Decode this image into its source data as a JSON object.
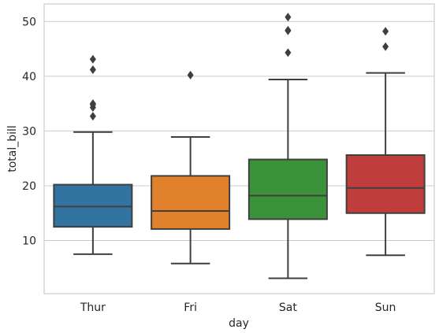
{
  "chart_data": {
    "type": "boxplot",
    "xlabel": "day",
    "ylabel": "total_bill",
    "ylim": [
      0.3,
      53.2
    ],
    "yticks": [
      10,
      20,
      30,
      40,
      50
    ],
    "grid": "horizontal",
    "categories": [
      "Thur",
      "Fri",
      "Sat",
      "Sun"
    ],
    "boxes": [
      {
        "category": "Thur",
        "color": "#3274a1",
        "whisker_low": 7.5,
        "q1": 12.5,
        "median": 16.2,
        "q3": 20.2,
        "whisker_high": 29.8,
        "outliers": [
          32.7,
          34.3,
          34.8,
          35.0,
          41.2,
          43.1
        ]
      },
      {
        "category": "Fri",
        "color": "#e1812c",
        "whisker_low": 5.8,
        "q1": 12.1,
        "median": 15.4,
        "q3": 21.8,
        "whisker_high": 28.9,
        "outliers": [
          40.2
        ]
      },
      {
        "category": "Sat",
        "color": "#3a923a",
        "whisker_low": 3.1,
        "q1": 13.9,
        "median": 18.2,
        "q3": 24.8,
        "whisker_high": 39.4,
        "outliers": [
          44.3,
          48.3,
          48.4,
          50.8
        ]
      },
      {
        "category": "Sun",
        "color": "#c03d3e",
        "whisker_low": 7.3,
        "q1": 15.0,
        "median": 19.6,
        "q3": 25.6,
        "whisker_high": 40.6,
        "outliers": [
          45.4,
          48.2
        ]
      }
    ],
    "colors": {
      "grid": "#cccccc",
      "frame": "#cccccc",
      "line": "#3f3f3f"
    }
  }
}
